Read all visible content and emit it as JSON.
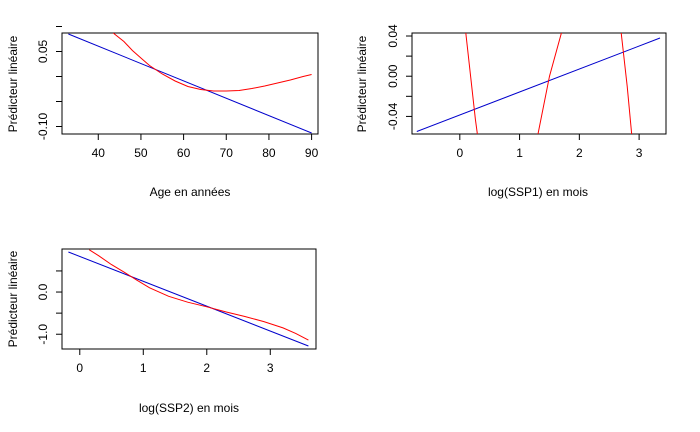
{
  "chart_data": [
    {
      "type": "line",
      "xlabel": "Age en années",
      "ylabel": "Prédicteur linéaire",
      "xlim": [
        31.5,
        91.5
      ],
      "ylim": [
        -0.115,
        0.087
      ],
      "xticks": [
        40,
        50,
        60,
        70,
        80,
        90
      ],
      "xtick_labels": [
        "40",
        "50",
        "60",
        "70",
        "80",
        "90"
      ],
      "yticks": [
        0.05,
        -0.1
      ],
      "ytick_labels": [
        "0.05",
        "-0.10"
      ],
      "yminor_ticks": [
        0.1,
        0.0,
        -0.05
      ],
      "series": [
        {
          "color": "#0000cc",
          "x": [
            33,
            90
          ],
          "y": [
            0.085,
            -0.113
          ]
        },
        {
          "color": "#ff0000",
          "x": [
            43.5,
            46,
            48,
            50,
            52,
            55,
            58,
            61,
            64,
            67,
            70,
            73,
            76,
            79,
            82,
            85,
            88,
            90
          ],
          "y": [
            0.087,
            0.07,
            0.052,
            0.037,
            0.022,
            0.005,
            -0.009,
            -0.02,
            -0.026,
            -0.029,
            -0.029,
            -0.028,
            -0.024,
            -0.019,
            -0.013,
            -0.007,
            0.0,
            0.004
          ]
        }
      ]
    },
    {
      "type": "line",
      "xlabel": "log(SSP1) en mois",
      "ylabel": "Prédicteur linéaire",
      "xlim": [
        -0.8,
        3.45
      ],
      "ylim": [
        -0.0575,
        0.043
      ],
      "xticks": [
        0,
        1,
        2,
        3
      ],
      "xtick_labels": [
        "0",
        "1",
        "2",
        "3"
      ],
      "yticks": [
        0.04,
        0.0,
        -0.04
      ],
      "ytick_labels": [
        "0.04",
        "0.00",
        "-0.04"
      ],
      "yminor_ticks": [
        0.02,
        -0.02
      ],
      "series": [
        {
          "color": "#0000cc",
          "x": [
            -0.72,
            3.35
          ],
          "y": [
            -0.055,
            0.038
          ]
        },
        {
          "color": "#ff0000",
          "x": [
            0.1,
            0.18,
            0.26,
            0.3
          ],
          "y": [
            0.043,
            0.0,
            -0.043,
            -0.06
          ]
        },
        {
          "color": "#ff0000",
          "x": [
            1.3,
            1.5,
            1.7
          ],
          "y": [
            -0.06,
            0.0,
            0.043
          ]
        },
        {
          "color": "#ff0000",
          "x": [
            2.7,
            2.8,
            2.88
          ],
          "y": [
            0.043,
            -0.01,
            -0.06
          ]
        }
      ]
    },
    {
      "type": "line",
      "xlabel": "log(SSP2) en mois",
      "ylabel": "Prédicteur linéaire",
      "xlim": [
        -0.28,
        3.72
      ],
      "ylim": [
        -1.35,
        1.02
      ],
      "xticks": [
        0,
        1,
        2,
        3
      ],
      "xtick_labels": [
        "0",
        "1",
        "2",
        "3"
      ],
      "yticks": [
        0.0,
        -1.0
      ],
      "ytick_labels": [
        "0.0",
        "-1.0"
      ],
      "yminor_ticks": [
        0.5,
        -0.5
      ],
      "series": [
        {
          "color": "#0000cc",
          "x": [
            -0.18,
            3.6
          ],
          "y": [
            0.95,
            -1.28
          ]
        },
        {
          "color": "#ff0000",
          "x": [
            0.15,
            0.3,
            0.5,
            0.7,
            0.9,
            1.1,
            1.4,
            1.7,
            2.0,
            2.3,
            2.6,
            2.9,
            3.2,
            3.4,
            3.6
          ],
          "y": [
            1.0,
            0.86,
            0.65,
            0.47,
            0.28,
            0.1,
            -0.1,
            -0.24,
            -0.35,
            -0.47,
            -0.58,
            -0.7,
            -0.85,
            -0.98,
            -1.14
          ]
        }
      ]
    }
  ]
}
